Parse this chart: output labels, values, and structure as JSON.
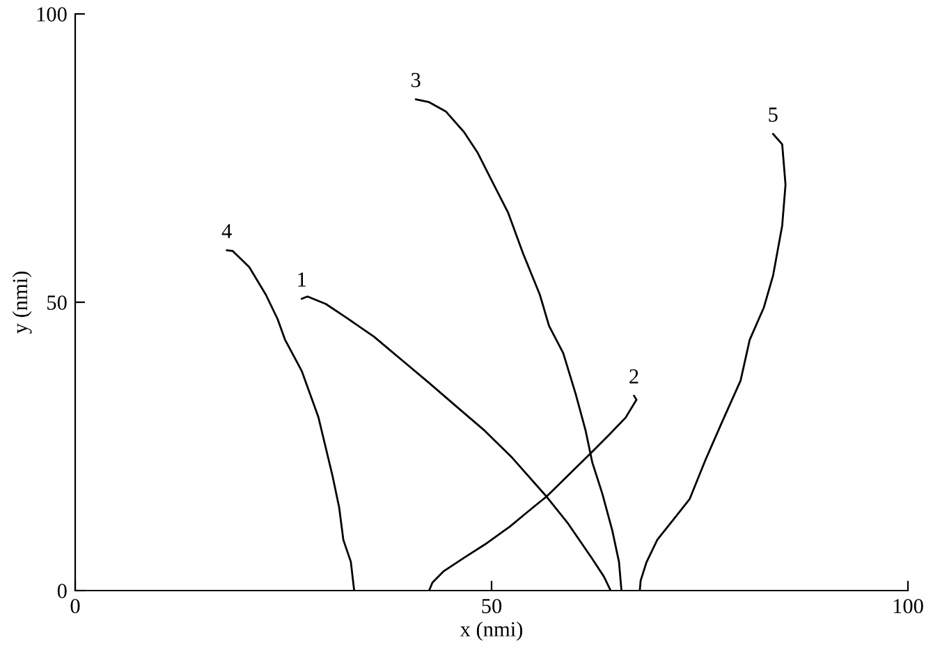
{
  "chart_data": {
    "type": "line",
    "xlabel": "x (nmi)",
    "ylabel": "y (nmi)",
    "xlim": [
      0,
      100
    ],
    "ylim": [
      0,
      100
    ],
    "xticks": [
      0,
      50,
      100
    ],
    "yticks": [
      0,
      50,
      100
    ],
    "line_style": "solid",
    "series": [
      {
        "name": "1",
        "color": "#000000",
        "x": [
          27.2,
          27.9,
          30.1,
          32.6,
          35.9,
          39.2,
          42.5,
          45.8,
          49.2,
          52.5,
          56.6,
          59.1,
          62.0,
          63.5,
          64.3
        ],
        "values": [
          50.6,
          51.0,
          49.7,
          47.3,
          44.0,
          40.0,
          36.0,
          31.9,
          27.7,
          23.0,
          16.3,
          11.8,
          5.7,
          2.4,
          0
        ]
      },
      {
        "name": "2",
        "color": "#000000",
        "x": [
          67.1,
          67.4,
          66.1,
          64.1,
          62.1,
          59.5,
          56.6,
          54.2,
          52.2,
          49.2,
          46.7,
          44.2,
          42.9,
          42.5
        ],
        "values": [
          33.8,
          33.1,
          30.0,
          27.0,
          24.1,
          20.4,
          16.3,
          13.5,
          11.1,
          8.0,
          5.7,
          3.3,
          1.4,
          0
        ]
      },
      {
        "name": "3",
        "color": "#000000",
        "x": [
          40.9,
          42.5,
          44.5,
          46.7,
          48.3,
          50.3,
          52.0,
          53.8,
          55.8,
          56.9,
          58.6,
          60.1,
          61.3,
          62.1,
          63.3,
          64.5,
          65.3,
          65.6
        ],
        "values": [
          85.2,
          84.7,
          83.1,
          79.5,
          76.0,
          70.3,
          65.5,
          58.4,
          51.3,
          45.9,
          41.2,
          34.1,
          27.7,
          22.2,
          16.8,
          10.4,
          5.0,
          0
        ]
      },
      {
        "name": "4",
        "color": "#000000",
        "x": [
          18.2,
          18.9,
          20.9,
          22.9,
          24.3,
          25.2,
          27.2,
          29.2,
          30.9,
          31.7,
          32.2,
          33.1,
          33.5
        ],
        "values": [
          59.0,
          58.9,
          56.1,
          51.3,
          47.1,
          43.5,
          38.1,
          30.1,
          19.9,
          14.4,
          8.8,
          5.0,
          0
        ]
      },
      {
        "name": "5",
        "color": "#000000",
        "x": [
          83.8,
          84.9,
          85.3,
          84.9,
          83.8,
          82.7,
          81.0,
          79.9,
          77.7,
          75.7,
          73.8,
          72.1,
          69.9,
          68.6,
          67.9,
          67.8
        ],
        "values": [
          79.2,
          77.4,
          70.4,
          63.3,
          54.6,
          49.1,
          43.5,
          36.4,
          29.3,
          22.7,
          15.9,
          12.8,
          8.8,
          4.9,
          1.7,
          0
        ]
      }
    ]
  }
}
